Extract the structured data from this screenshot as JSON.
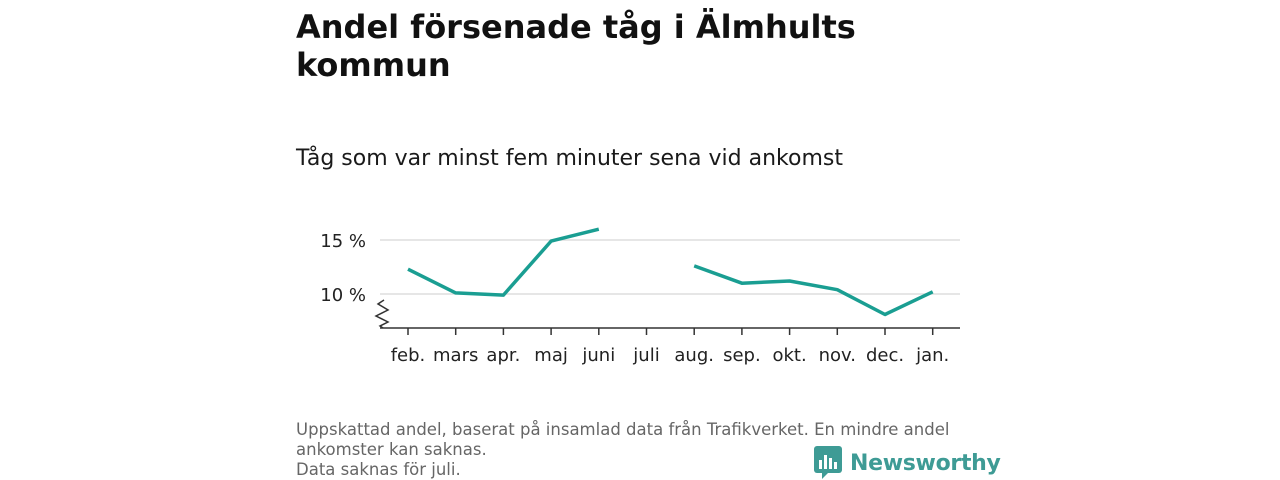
{
  "header": {
    "title": "Andel försenade tåg i Älmhults kommun",
    "subtitle": "Tåg som var minst fem minuter sena vid ankomst"
  },
  "footer": {
    "note_1": "Uppskattad andel, baserat på insamlad data från Trafikverket. En mindre andel",
    "note_2": "ankomster kan saknas.",
    "note_3": "Data saknas för juli.",
    "logo_text": "Newsworthy"
  },
  "colors": {
    "line": "#1a9e92",
    "grid": "#dddddd",
    "axis": "#333333",
    "logo": "#3e9b95"
  },
  "chart_data": {
    "type": "line",
    "title": "Andel försenade tåg i Älmhults kommun",
    "subtitle": "Tåg som var minst fem minuter sena vid ankomst",
    "categories": [
      "feb.",
      "mars",
      "apr.",
      "maj",
      "juni",
      "juli",
      "aug.",
      "sep.",
      "okt.",
      "nov.",
      "dec.",
      "jan."
    ],
    "series": [
      {
        "values": [
          12.3,
          10.1,
          9.9,
          14.9,
          16.0,
          null,
          12.6,
          11.0,
          11.2,
          10.4,
          8.1,
          10.2
        ]
      }
    ],
    "y_ticks": [
      10,
      15
    ],
    "y_tick_labels": [
      "10 %",
      "15 %"
    ],
    "ylim": [
      7,
      16
    ],
    "y_axis_break": true,
    "grid": "horizontal",
    "xlabel": "",
    "ylabel": ""
  }
}
